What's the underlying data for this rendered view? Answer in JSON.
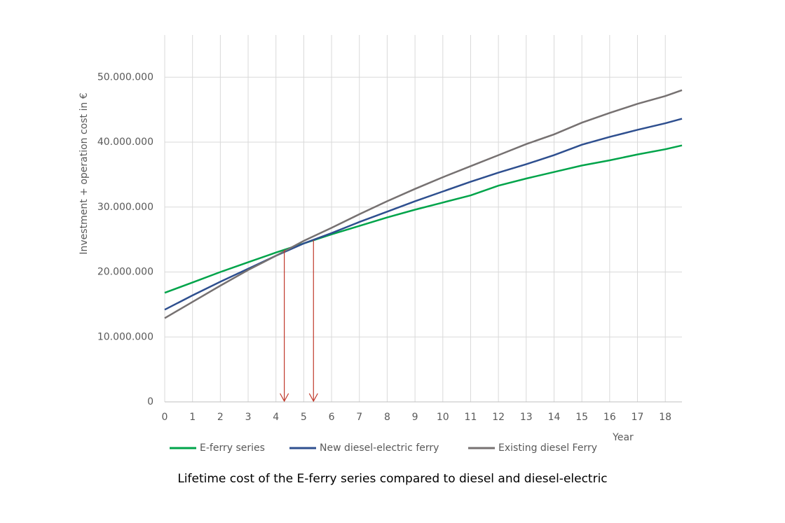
{
  "chart_data": {
    "type": "line",
    "caption": "Lifetime cost of the E-ferry series compared to diesel and diesel-electric",
    "x_label": "Year",
    "y_label": "Investment + operation cost in €",
    "x": [
      0,
      1,
      2,
      3,
      4,
      5,
      6,
      7,
      8,
      9,
      10,
      11,
      12,
      13,
      14,
      15,
      16,
      17,
      18,
      18.6
    ],
    "series": [
      {
        "name": "E-ferry series",
        "color": "#00a44a",
        "values": [
          16800000,
          18400000,
          20000000,
          21500000,
          23000000,
          24400000,
          25800000,
          27100000,
          28400000,
          29600000,
          30700000,
          31800000,
          33300000,
          34400000,
          35400000,
          36400000,
          37200000,
          38100000,
          38900000,
          39500000
        ]
      },
      {
        "name": "New diesel-electric ferry",
        "color": "#2e4f8f",
        "values": [
          14200000,
          16400000,
          18500000,
          20500000,
          22500000,
          24400000,
          26000000,
          27700000,
          29300000,
          30900000,
          32400000,
          33900000,
          35300000,
          36600000,
          38000000,
          39600000,
          40800000,
          41900000,
          42900000,
          43600000
        ]
      },
      {
        "name": "Existing diesel Ferry",
        "color": "#767171",
        "values": [
          12900000,
          15400000,
          17900000,
          20300000,
          22500000,
          24800000,
          26800000,
          28900000,
          30900000,
          32800000,
          34600000,
          36300000,
          38000000,
          39700000,
          41200000,
          43000000,
          44500000,
          45900000,
          47100000,
          48000000
        ]
      }
    ],
    "arrows_x": [
      4.3,
      5.35
    ],
    "arrow_color": "#c0392b",
    "xlim": [
      0,
      18.6
    ],
    "xticks": [
      0,
      1,
      2,
      3,
      4,
      5,
      6,
      7,
      8,
      9,
      10,
      11,
      12,
      13,
      14,
      15,
      16,
      17,
      18
    ],
    "ylim": [
      0,
      56500000
    ],
    "yticks": [
      0,
      {
        "value": 10000000,
        "label": "10.000.000"
      },
      {
        "value": 20000000,
        "label": "20.000.000"
      },
      {
        "value": 30000000,
        "label": "30.000.000"
      },
      {
        "value": 40000000,
        "label": "40.000.000"
      },
      {
        "value": 50000000,
        "label": "50.000.000"
      }
    ],
    "grid": true
  }
}
